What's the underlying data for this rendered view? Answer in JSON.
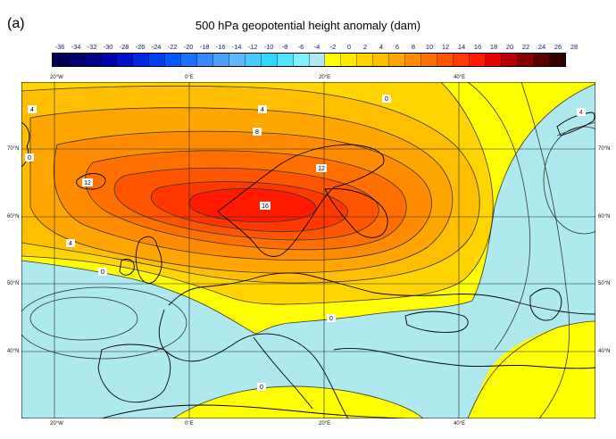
{
  "panel_label": "(a)",
  "title": "500 hPa geopotential height anomaly (dam)",
  "colorbar": {
    "labels": [
      "-36",
      "-34",
      "-32",
      "-30",
      "-28",
      "-26",
      "-24",
      "-22",
      "-20",
      "-18",
      "-16",
      "-14",
      "-12",
      "-10",
      "-8",
      "-6",
      "-4",
      "-2",
      "0",
      "2",
      "4",
      "6",
      "8",
      "10",
      "12",
      "14",
      "16",
      "18",
      "20",
      "22",
      "24",
      "26",
      "28"
    ],
    "colors": [
      "#000055",
      "#00006e",
      "#000088",
      "#0000a8",
      "#0010c8",
      "#0028e0",
      "#0040f0",
      "#0058ff",
      "#1c70ff",
      "#3888ff",
      "#4aa0ff",
      "#5cb8ff",
      "#48c8ff",
      "#30d8ff",
      "#50e4ff",
      "#80f0ff",
      "#ade9ee",
      "#ffff00",
      "#ffe800",
      "#ffd400",
      "#ffbe00",
      "#ffa600",
      "#ff8c00",
      "#ff7000",
      "#ff5500",
      "#ff3800",
      "#ff1a00",
      "#e00000",
      "#b80000",
      "#880000",
      "#5a0000",
      "#300000"
    ]
  },
  "map": {
    "lon_labels_top": [
      "20°W",
      "0°E",
      "20°E",
      "40°E"
    ],
    "lon_labels_bottom": [
      "20°W",
      "0°E",
      "20°E",
      "40°E"
    ],
    "lat_labels_left": [
      "70°N",
      "60°N",
      "50°N",
      "40°N"
    ],
    "lat_labels_right": [
      "70°N",
      "60°N",
      "50°N",
      "40°N"
    ],
    "contour_labels": [
      "4",
      "4",
      "8",
      "12",
      "16",
      "12",
      "4",
      "0",
      "0",
      "0",
      "0",
      "0",
      "4"
    ],
    "colors": {
      "ocean_land_negative": "#ade9ee",
      "zero_to_two": "#ffff00",
      "contour": "#333333",
      "coast": "#000000"
    }
  }
}
